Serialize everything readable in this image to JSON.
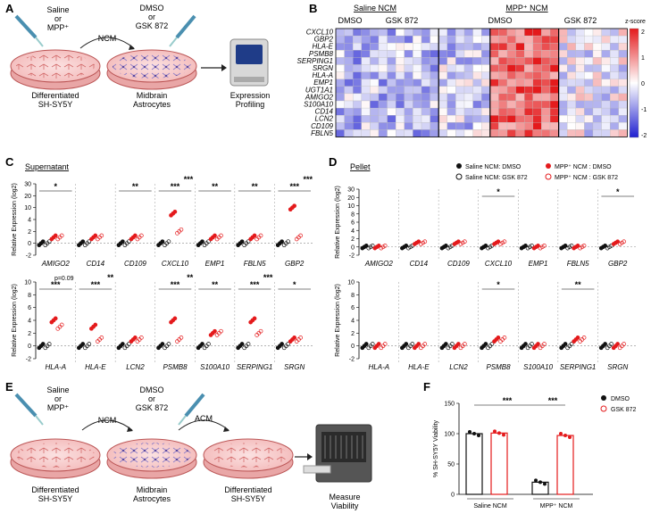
{
  "panelA": {
    "letter": "A",
    "treat1": [
      "Saline",
      "or",
      "MPP⁺"
    ],
    "arrow": "NCM",
    "treat2": [
      "DMSO",
      "or",
      "GSK 872"
    ],
    "cell1": [
      "Differentiated",
      "SH-SY5Y"
    ],
    "cell2": [
      "Midbrain",
      "Astrocytes"
    ],
    "result": [
      "Expression",
      "Profiling"
    ]
  },
  "panelB": {
    "letter": "B",
    "group_saline": "Saline NCM",
    "group_mpp": "MPP⁺ NCM",
    "sub": [
      "DMSO",
      "GSK 872",
      "DMSO",
      "GSK 872"
    ],
    "genes": [
      "CXCL10",
      "GBP2",
      "HLA-E",
      "PSMB8",
      "SERPING1",
      "SRGN",
      "HLA-A",
      "EMP1",
      "UGT1A1",
      "AMIGO2",
      "S100A10",
      "CD14",
      "LCN2",
      "CD109",
      "FBLN5"
    ],
    "colorbar_title": "z-score",
    "colorbar_ticks": [
      "2",
      "1",
      "0",
      "-1",
      "-2"
    ],
    "colors": {
      "high": "#e41a1c",
      "mid": "#ffffff",
      "low": "#2020d0"
    }
  },
  "panelC": {
    "letter": "C",
    "title": "Supernatant",
    "ylabel": "Relative Expression (log2)",
    "top": {
      "genes": [
        "AMIGO2",
        "CD14",
        "CD109",
        "CXCL10",
        "EMP1",
        "FBLN5",
        "GBP2"
      ],
      "ticks": [
        "-2",
        "0",
        "2",
        "4",
        "10",
        "20",
        "30"
      ],
      "sig": [
        "*",
        "",
        "**",
        "***|***",
        "**",
        "**",
        "***|***"
      ]
    },
    "bottom": {
      "genes": [
        "HLA-A",
        "HLA-E",
        "LCN2",
        "PSMB8",
        "S100A10",
        "SERPING1",
        "SRGN"
      ],
      "ticks": [
        "-2",
        "0",
        "2",
        "4",
        "6",
        "8",
        "10"
      ],
      "sig": [
        "***|p=0.09",
        "***|**",
        "",
        "***|**",
        "**",
        "***|***",
        "*"
      ]
    }
  },
  "panelD": {
    "letter": "D",
    "title": "Pellet",
    "ylabel": "Relative Expression (log2)",
    "legend": [
      "Saline NCM: DMSO",
      "Saline NCM: GSK 872",
      "MPP⁺ NCM : DMSO",
      "MPP⁺ NCM : GSK 872"
    ],
    "top": {
      "genes": [
        "AMIGO2",
        "CD14",
        "CD109",
        "CXCL10",
        "EMP1",
        "FBLN5",
        "GBP2"
      ],
      "ticks": [
        "-2",
        "0",
        "2",
        "4",
        "6",
        "8",
        "10",
        "20",
        "30"
      ],
      "sig": [
        "",
        "",
        "",
        "*",
        "",
        "",
        "*"
      ]
    },
    "bottom": {
      "genes": [
        "HLA-A",
        "HLA-E",
        "LCN2",
        "PSMB8",
        "S100A10",
        "SERPING1",
        "SRGN"
      ],
      "ticks": [
        "-2",
        "0",
        "2",
        "4",
        "6",
        "8",
        "10"
      ],
      "sig": [
        "",
        "",
        "",
        "*",
        "",
        "**",
        ""
      ]
    }
  },
  "panelE": {
    "letter": "E",
    "treat1": [
      "Saline",
      "or",
      "MPP⁺"
    ],
    "arrow1": "NCM",
    "treat2": [
      "DMSO",
      "or",
      "GSK 872"
    ],
    "arrow2": "ACM",
    "cell1": [
      "Differentiated",
      "SH-SY5Y"
    ],
    "cell2": [
      "Midbrain",
      "Astrocytes"
    ],
    "cell3": [
      "Differentiated",
      "SH-SY5Y"
    ],
    "result": [
      "Measure",
      "Viability"
    ]
  },
  "panelF": {
    "letter": "F",
    "ylabel": "% SH-SY5Y Viability",
    "legend": [
      "DMSO",
      "GSK 872"
    ],
    "groups": [
      "Saline NCM",
      "MPP⁺ NCM"
    ],
    "ticks": [
      "0",
      "50",
      "100",
      "150"
    ],
    "sig": [
      "***",
      "***"
    ]
  },
  "chart_data": [
    {
      "type": "bar",
      "categories": [
        "Saline NCM DMSO",
        "Saline NCM GSK 872",
        "MPP⁺ NCM DMSO",
        "MPP⁺ NCM GSK 872"
      ],
      "values": [
        100,
        101,
        20,
        97
      ],
      "ylabel": "% SH-SY5Y Viability",
      "ylim": [
        0,
        150
      ]
    }
  ]
}
